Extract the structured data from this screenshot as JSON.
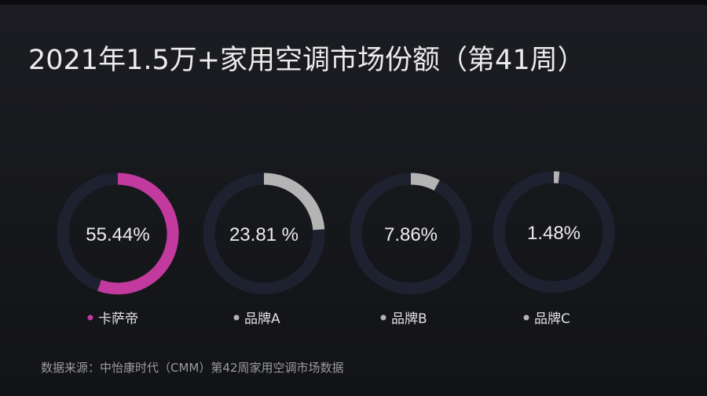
{
  "title": "2021年1.5万+家用空调市场份额（第41周）",
  "footer": "数据来源：中怡康时代（CMM）第42周家用空调市场数据",
  "chart_data": {
    "type": "pie",
    "subtype": "donut-gauges",
    "title": "2021年1.5万+家用空调市场份额（第41周）",
    "unit": "%",
    "track_color": "#1e2230",
    "series": [
      {
        "name": "卡萨帝",
        "value": 55.44,
        "label": "55.44%",
        "color": "#c23a9e"
      },
      {
        "name": "品牌A",
        "value": 23.81,
        "label": "23.81 %",
        "color": "#b4b4b4"
      },
      {
        "name": "品牌B",
        "value": 7.86,
        "label": "7.86%",
        "color": "#b4b4b4"
      },
      {
        "name": "品牌C",
        "value": 1.48,
        "label": "1.48%",
        "color": "#b4b4b4"
      }
    ]
  }
}
